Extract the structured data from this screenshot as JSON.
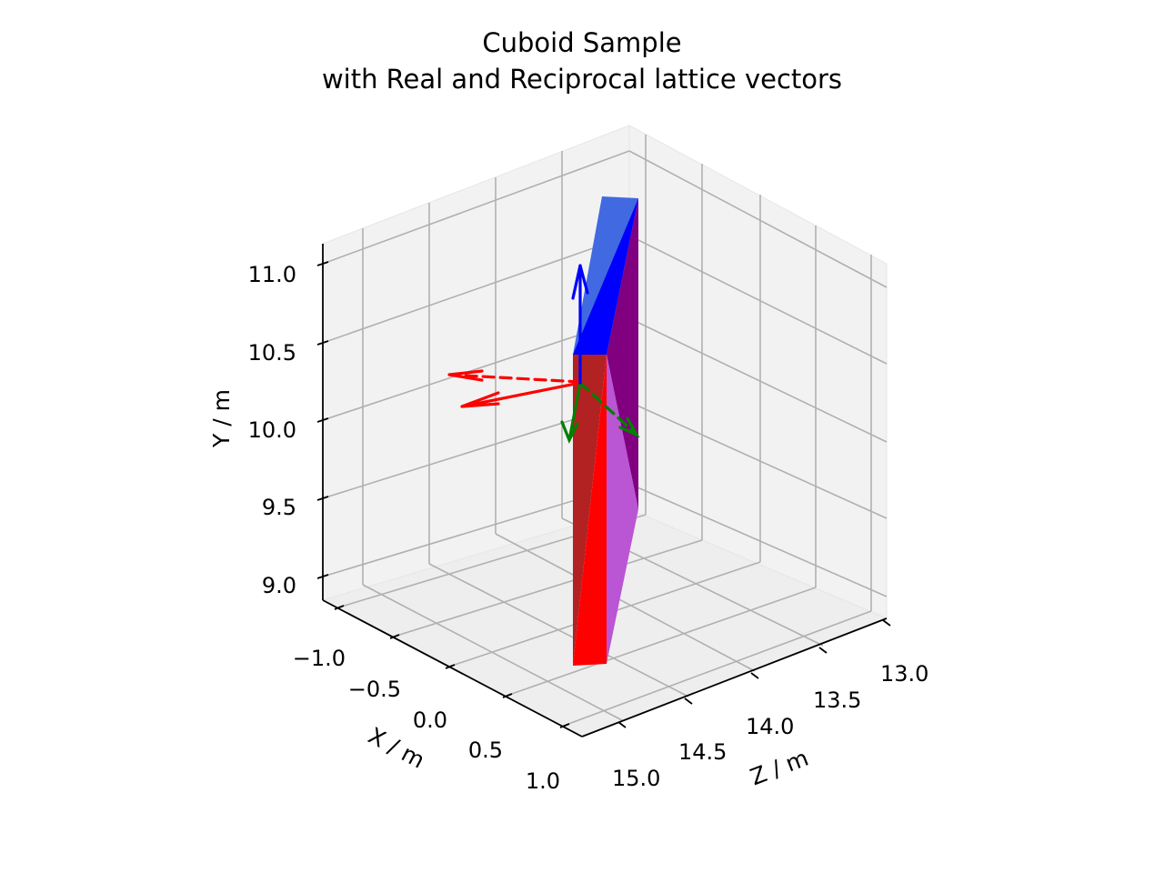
{
  "chart_data": {
    "type": "3d-surface-with-vectors",
    "title": "Cuboid Sample",
    "subtitle": "with Real and Reciprocal lattice vectors",
    "xlabel": "X / m",
    "ylabel": "Y / m",
    "zlabel": "Z / m",
    "x_ticks": [
      "−1.0",
      "−0.5",
      "0.0",
      "0.5",
      "1.0"
    ],
    "y_ticks": [
      "9.0",
      "9.5",
      "10.0",
      "10.5",
      "11.0"
    ],
    "z_ticks": [
      "13.0",
      "13.5",
      "14.0",
      "14.5",
      "15.0"
    ],
    "x_range": [
      -1.2,
      1.2
    ],
    "y_range": [
      8.9,
      11.1
    ],
    "z_range": [
      12.8,
      15.2
    ],
    "grid": true,
    "face_colors": {
      "top": "#4169e1",
      "front_left": "#b22222",
      "front_right": "#ff0000",
      "side_dark": "#800080",
      "side_light": "#ba55d3",
      "upper_blue": "#0000ff"
    },
    "vector_colors": {
      "a": "#ff0000",
      "b": "#008000",
      "c": "#0000ff"
    }
  }
}
